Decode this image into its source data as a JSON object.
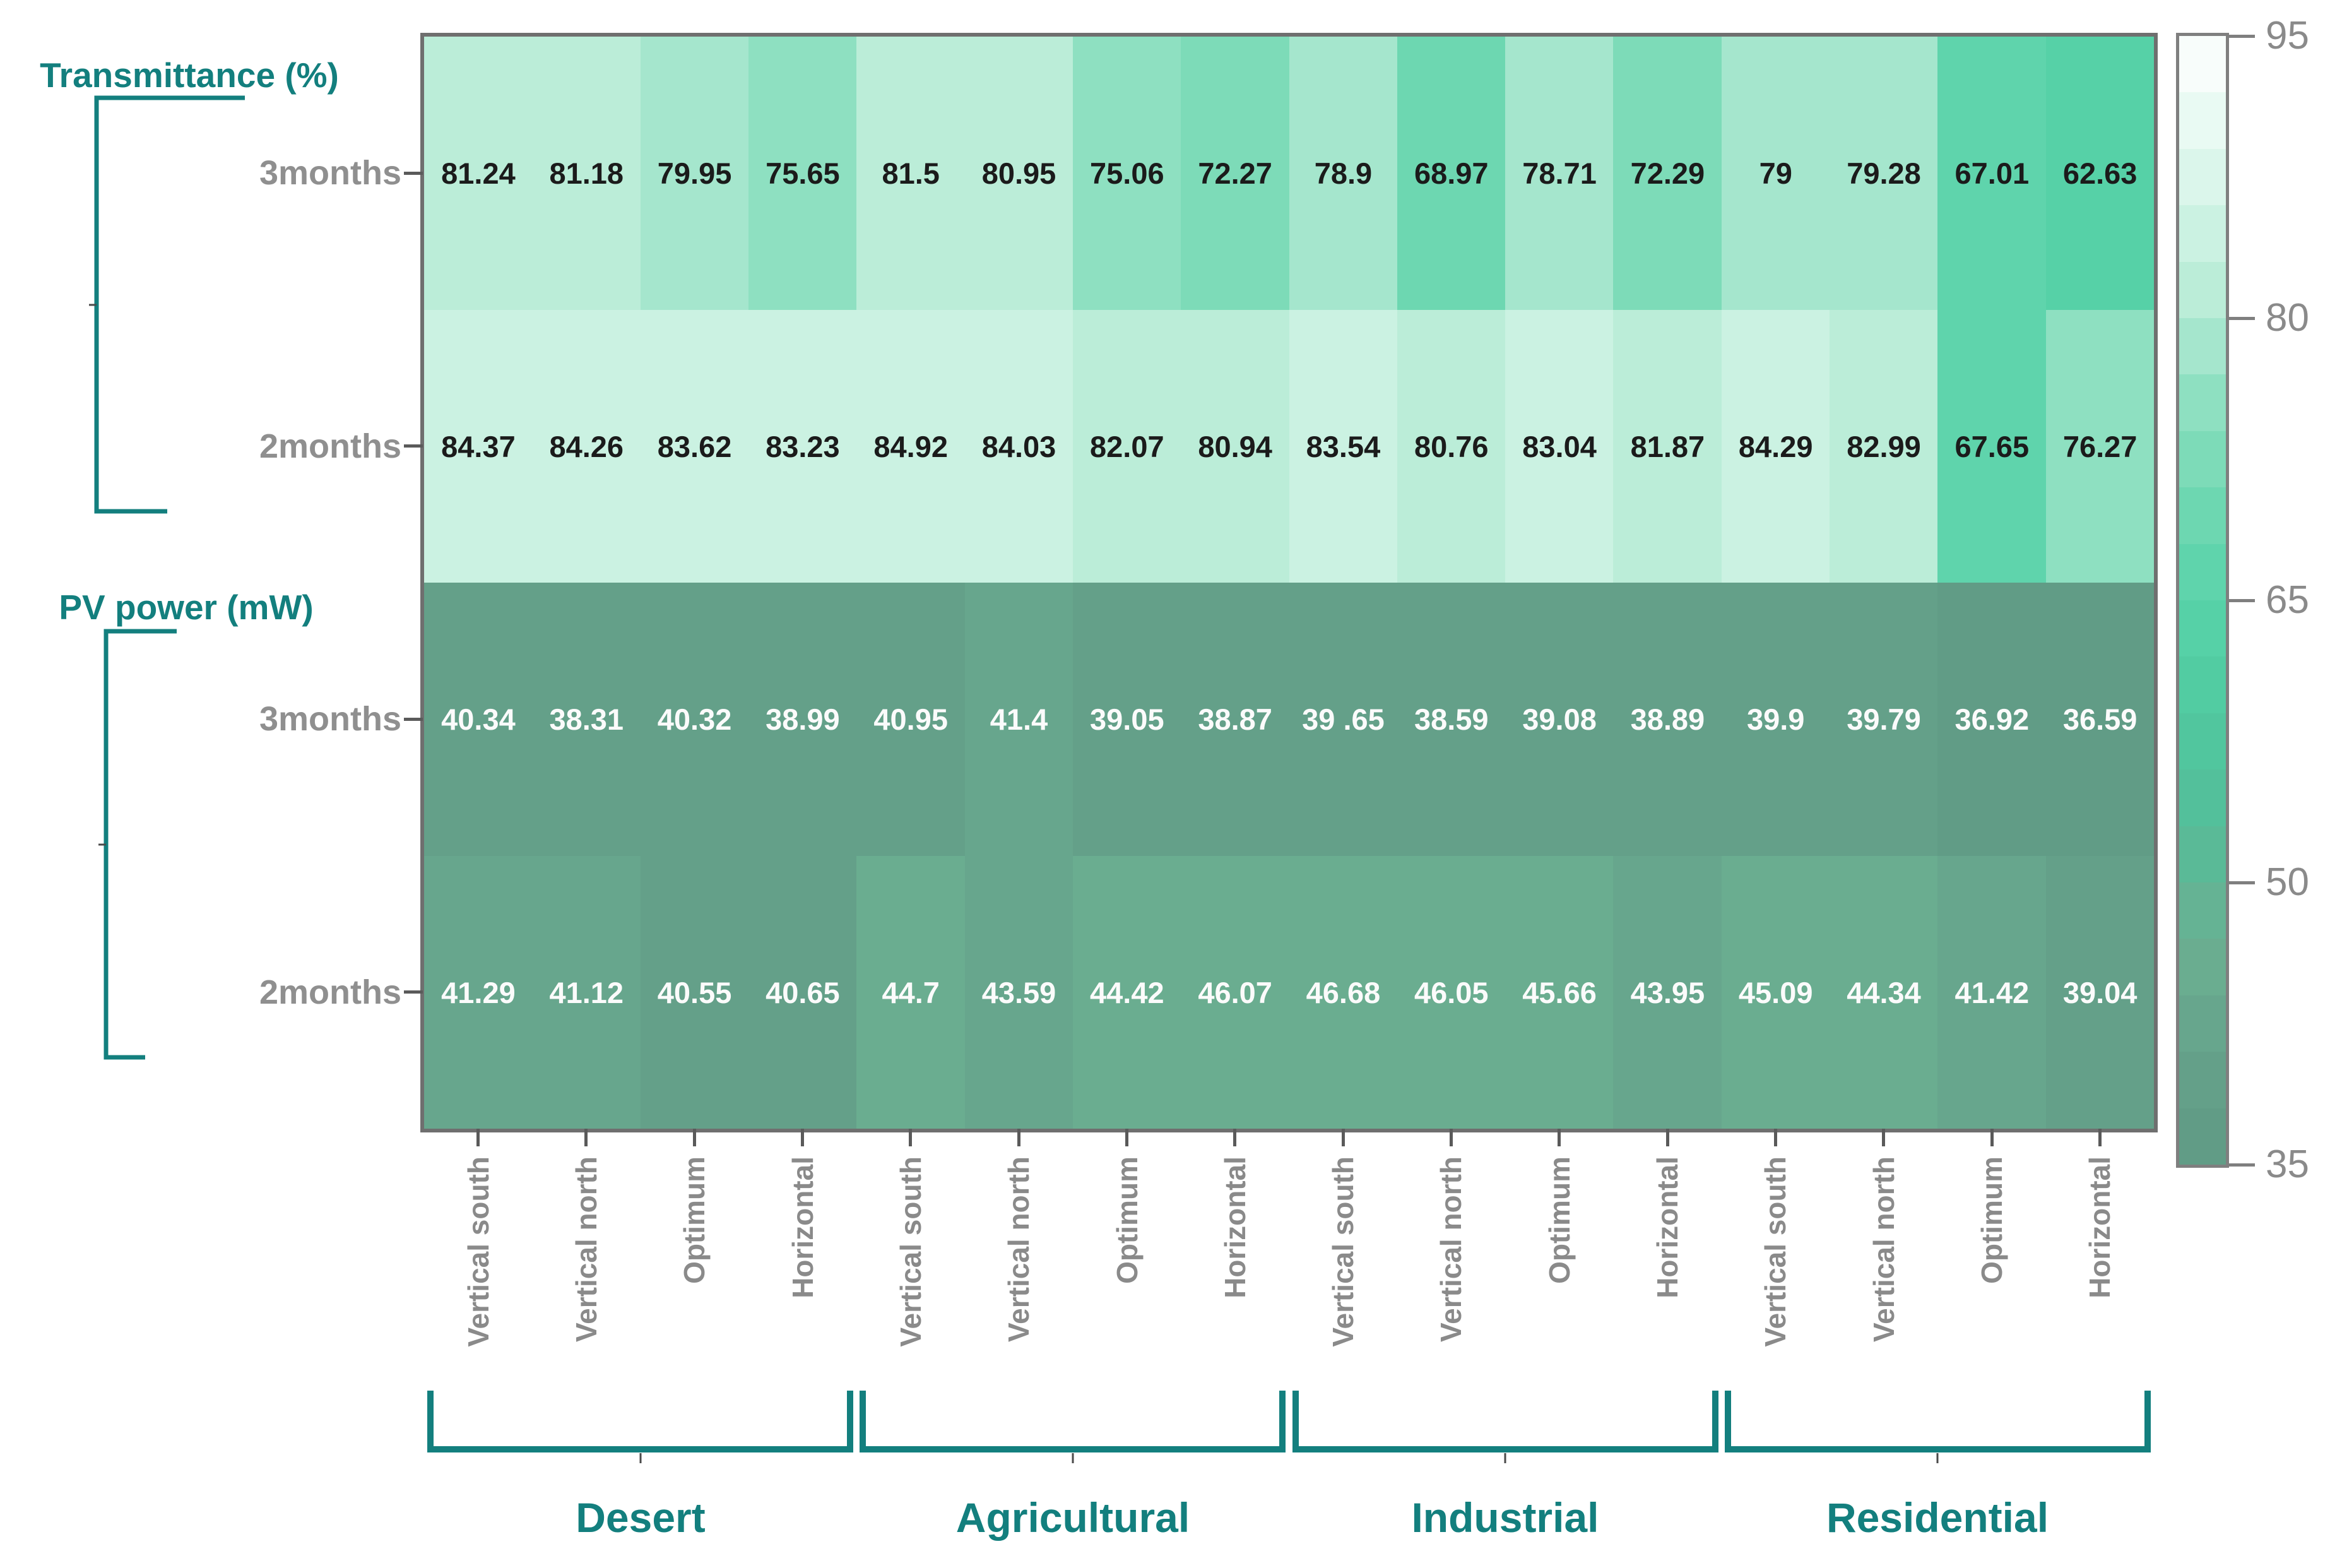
{
  "chart_data": {
    "type": "heatmap",
    "description": "Grouped heatmap of transmittance and PV power for four environments and four panel orientations over 2 and 3 month periods",
    "row_groups": [
      {
        "label": "Transmittance (%)",
        "rows": [
          {
            "label": "3months",
            "values": [
              "81.24",
              "81.18",
              "79.95",
              "75.65",
              "81.5",
              "80.95",
              "75.06",
              "72.27",
              "78.9",
              "68.97",
              "78.71",
              "72.29",
              "79",
              "79.28",
              "67.01",
              "62.63"
            ]
          },
          {
            "label": "2months",
            "values": [
              "84.37",
              "84.26",
              "83.62",
              "83.23",
              "84.92",
              "84.03",
              "82.07",
              "80.94",
              "83.54",
              "80.76",
              "83.04",
              "81.87",
              "84.29",
              "82.99",
              "67.65",
              "76.27"
            ]
          }
        ]
      },
      {
        "label": "PV power (mW)",
        "rows": [
          {
            "label": "3months",
            "values": [
              "40.34",
              "38.31",
              "40.32",
              "38.99",
              "40.95",
              "41.4",
              "39.05",
              "38.87",
              "39 .65",
              "38.59",
              "39.08",
              "38.89",
              "39.9",
              "39.79",
              "36.92",
              "36.59"
            ]
          },
          {
            "label": "2months",
            "values": [
              "41.29",
              "41.12",
              "40.55",
              "40.65",
              "44.7",
              "43.59",
              "44.42",
              "46.07",
              "46.68",
              "46.05",
              "45.66",
              "43.95",
              "45.09",
              "44.34",
              "41.42",
              "39.04"
            ]
          }
        ]
      }
    ],
    "column_groups": [
      "Desert",
      "Agricultural",
      "Industrial",
      "Residential"
    ],
    "orientations": [
      "Vertical south",
      "Vertical north",
      "Optimum",
      "Horizontal"
    ],
    "colorbar_ticks": [
      95,
      80,
      65,
      50,
      35
    ],
    "value_range": [
      35,
      95
    ],
    "colorbar_steps": 20,
    "colormap_anchors": [
      [
        35,
        "#5f9a84"
      ],
      [
        41,
        "#65a28b"
      ],
      [
        47,
        "#6bb092"
      ],
      [
        53,
        "#54bd99"
      ],
      [
        59,
        "#50c9a0"
      ],
      [
        65,
        "#58d3a9"
      ],
      [
        71,
        "#74d8b3"
      ],
      [
        77,
        "#97e2c6"
      ],
      [
        80,
        "#b2e9d3"
      ],
      [
        83,
        "#c3f0dd"
      ],
      [
        86,
        "#d3f4e6"
      ],
      [
        89,
        "#e2f8ef"
      ],
      [
        92,
        "#f0fbf6"
      ],
      [
        95,
        "#ffffff"
      ]
    ],
    "colors": {
      "accent_teal": "#137f7e",
      "axis_label_gray": "#8a8a8a",
      "row_label_gray": "#8f8f8f",
      "tick_dark": "#5a5a5a",
      "mini_tick_dark": "#4a4a4a",
      "frame_gray": "#6f6f6f",
      "colorbar_frame_gray": "#7f7f7f",
      "cell_text_dark": "#1b1b1b",
      "cell_text_light": "#fbfbfb"
    },
    "cell_text_dark_threshold": 55
  }
}
